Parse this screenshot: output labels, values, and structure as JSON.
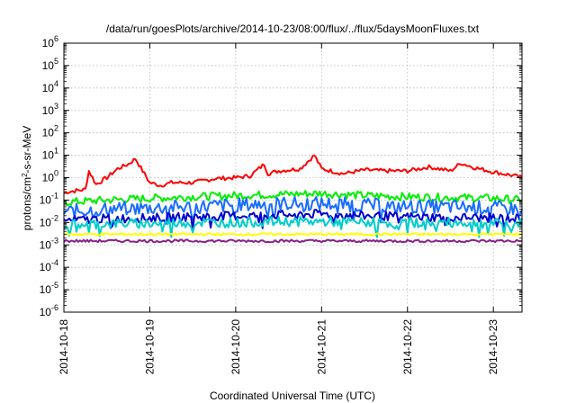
{
  "chart_data": {
    "type": "line",
    "title": "/data/run/goesPlots/archive/2014-10-23/08:00/flux/../flux/5daysMoonFluxes.txt",
    "xlabel": "Coordinated Universal Time (UTC)",
    "ylabel_parts": {
      "pre": "protons/cm",
      "sup": "2",
      "post": "-s-sr-MeV"
    },
    "yscale": "log",
    "ylim": [
      1e-06,
      1000000.0
    ],
    "xlim": [
      "2014-10-18",
      "2014-10-23 08:00"
    ],
    "grid": true,
    "legend": "none",
    "x_ticks": [
      "2014-10-18",
      "2014-10-19",
      "2014-10-20",
      "2014-10-21",
      "2014-10-22",
      "2014-10-23"
    ],
    "y_ticks": [
      {
        "base": "10",
        "exp": "-6"
      },
      {
        "base": "10",
        "exp": "-5"
      },
      {
        "base": "10",
        "exp": "-4"
      },
      {
        "base": "10",
        "exp": "-3"
      },
      {
        "base": "10",
        "exp": "-2"
      },
      {
        "base": "10",
        "exp": "-1"
      },
      {
        "base": "10",
        "exp": "0"
      },
      {
        "base": "10",
        "exp": "1"
      },
      {
        "base": "10",
        "exp": "2"
      },
      {
        "base": "10",
        "exp": "3"
      },
      {
        "base": "10",
        "exp": "4"
      },
      {
        "base": "10",
        "exp": "5"
      },
      {
        "base": "10",
        "exp": "6"
      }
    ],
    "series": [
      {
        "color": "#ff0000",
        "x": [
          "2014-10-18 00:00",
          "2014-10-18 06:00",
          "2014-10-18 07:00",
          "2014-10-18 09:00",
          "2014-10-18 12:00",
          "2014-10-18 15:00",
          "2014-10-18 18:00",
          "2014-10-18 20:00",
          "2014-10-18 22:00",
          "2014-10-19 00:00",
          "2014-10-19 03:00",
          "2014-10-19 06:00",
          "2014-10-19 12:00",
          "2014-10-19 18:00",
          "2014-10-20 00:00",
          "2014-10-20 04:00",
          "2014-10-20 08:00",
          "2014-10-20 09:00",
          "2014-10-20 12:00",
          "2014-10-20 18:00",
          "2014-10-20 22:00",
          "2014-10-21 00:00",
          "2014-10-21 06:00",
          "2014-10-21 12:00",
          "2014-10-21 18:00",
          "2014-10-22 00:00",
          "2014-10-22 06:00",
          "2014-10-22 12:00",
          "2014-10-22 15:00",
          "2014-10-22 18:00",
          "2014-10-23 00:00",
          "2014-10-23 06:00",
          "2014-10-23 08:00"
        ],
        "y": [
          0.22,
          0.3,
          2.0,
          0.5,
          1.0,
          2.5,
          4.0,
          7.0,
          2.0,
          0.6,
          0.45,
          0.6,
          0.6,
          0.9,
          1.0,
          1.2,
          4.0,
          1.5,
          2.0,
          2.5,
          10.0,
          2.5,
          1.5,
          2.2,
          2.0,
          2.0,
          3.0,
          2.0,
          4.5,
          3.0,
          1.8,
          1.2,
          1.0
        ]
      },
      {
        "color": "#00ee00",
        "x": [
          "2014-10-18 00:00",
          "2014-10-18 12:00",
          "2014-10-19 00:00",
          "2014-10-19 12:00",
          "2014-10-20 00:00",
          "2014-10-20 12:00",
          "2014-10-21 00:00",
          "2014-10-21 12:00",
          "2014-10-22 00:00",
          "2014-10-22 12:00",
          "2014-10-23 00:00",
          "2014-10-23 08:00"
        ],
        "y": [
          0.08,
          0.1,
          0.12,
          0.14,
          0.16,
          0.18,
          0.2,
          0.16,
          0.14,
          0.13,
          0.12,
          0.1
        ]
      },
      {
        "color": "#1a6cff",
        "x": [
          "2014-10-18 00:00",
          "2014-10-18 12:00",
          "2014-10-19 00:00",
          "2014-10-19 12:00",
          "2014-10-20 00:00",
          "2014-10-20 12:00",
          "2014-10-21 00:00",
          "2014-10-21 12:00",
          "2014-10-22 00:00",
          "2014-10-22 12:00",
          "2014-10-23 00:00",
          "2014-10-23 08:00"
        ],
        "y": [
          0.03,
          0.04,
          0.045,
          0.05,
          0.06,
          0.07,
          0.07,
          0.06,
          0.05,
          0.05,
          0.045,
          0.04
        ]
      },
      {
        "color": "#0000cc",
        "x": [
          "2014-10-18 00:00",
          "2014-10-18 12:00",
          "2014-10-19 00:00",
          "2014-10-19 12:00",
          "2014-10-20 00:00",
          "2014-10-20 12:00",
          "2014-10-21 00:00",
          "2014-10-21 12:00",
          "2014-10-22 00:00",
          "2014-10-22 12:00",
          "2014-10-23 00:00",
          "2014-10-23 08:00"
        ],
        "y": [
          0.012,
          0.015,
          0.016,
          0.018,
          0.02,
          0.022,
          0.024,
          0.02,
          0.018,
          0.017,
          0.016,
          0.015
        ]
      },
      {
        "color": "#00cccc",
        "x": [
          "2014-10-18 00:00",
          "2014-10-18 12:00",
          "2014-10-19 00:00",
          "2014-10-19 12:00",
          "2014-10-20 00:00",
          "2014-10-20 12:00",
          "2014-10-21 00:00",
          "2014-10-21 12:00",
          "2014-10-22 00:00",
          "2014-10-22 12:00",
          "2014-10-23 00:00",
          "2014-10-23 08:00"
        ],
        "y": [
          0.008,
          0.009,
          0.009,
          0.01,
          0.01,
          0.011,
          0.011,
          0.01,
          0.01,
          0.01,
          0.009,
          0.009
        ]
      },
      {
        "color": "#ffff00",
        "x": [
          "2014-10-18 00:00",
          "2014-10-18 12:00",
          "2014-10-19 00:00",
          "2014-10-19 12:00",
          "2014-10-20 00:00",
          "2014-10-20 12:00",
          "2014-10-21 00:00",
          "2014-10-21 12:00",
          "2014-10-22 00:00",
          "2014-10-22 12:00",
          "2014-10-23 00:00",
          "2014-10-23 08:00"
        ],
        "y": [
          0.003,
          0.003,
          0.003,
          0.003,
          0.003,
          0.003,
          0.003,
          0.003,
          0.003,
          0.003,
          0.003,
          0.003
        ]
      },
      {
        "color": "#882288",
        "x": [
          "2014-10-18 00:00",
          "2014-10-18 12:00",
          "2014-10-19 00:00",
          "2014-10-19 12:00",
          "2014-10-20 00:00",
          "2014-10-20 12:00",
          "2014-10-21 00:00",
          "2014-10-21 12:00",
          "2014-10-22 00:00",
          "2014-10-22 12:00",
          "2014-10-23 00:00",
          "2014-10-23 08:00"
        ],
        "y": [
          0.0015,
          0.0015,
          0.0015,
          0.0015,
          0.0015,
          0.0015,
          0.0015,
          0.0015,
          0.0015,
          0.0015,
          0.0015,
          0.0015
        ]
      }
    ]
  }
}
